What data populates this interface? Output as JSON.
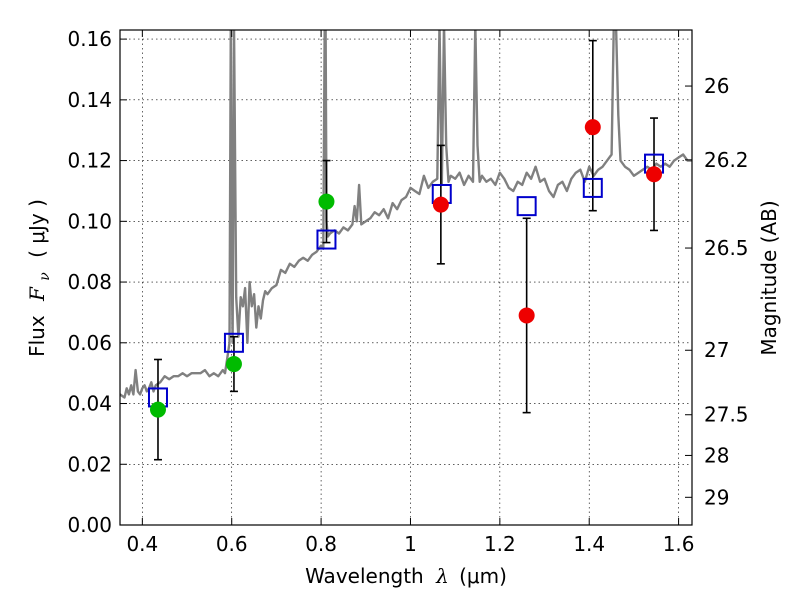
{
  "chart_data": {
    "type": "scatter",
    "xlabel_parts": {
      "text": "Wavelength",
      "sym": "λ",
      "unit": "(μm)"
    },
    "ylabel_parts": {
      "text": "Flux",
      "sym": "F",
      "sub": "ν",
      "unit": "( μJy )"
    },
    "y2label": "Magnitude (AB)",
    "xlim": [
      0.35,
      1.63
    ],
    "ylim": [
      0.0,
      0.163
    ],
    "grid": true,
    "xticks": [
      {
        "v": 0.4,
        "label": "0.4"
      },
      {
        "v": 0.6,
        "label": "0.6"
      },
      {
        "v": 0.8,
        "label": "0.8"
      },
      {
        "v": 1.0,
        "label": "1"
      },
      {
        "v": 1.2,
        "label": "1.2"
      },
      {
        "v": 1.4,
        "label": "1.4"
      },
      {
        "v": 1.6,
        "label": "1.6"
      }
    ],
    "yticks": [
      {
        "v": 0.0,
        "label": "0.00"
      },
      {
        "v": 0.02,
        "label": "0.02"
      },
      {
        "v": 0.04,
        "label": "0.04"
      },
      {
        "v": 0.06,
        "label": "0.06"
      },
      {
        "v": 0.08,
        "label": "0.08"
      },
      {
        "v": 0.1,
        "label": "0.10"
      },
      {
        "v": 0.12,
        "label": "0.12"
      },
      {
        "v": 0.14,
        "label": "0.14"
      },
      {
        "v": 0.16,
        "label": "0.16"
      }
    ],
    "magnitude_ticks": [
      {
        "mag": 26.0,
        "label": "26"
      },
      {
        "mag": 26.2,
        "label": "26.2"
      },
      {
        "mag": 26.5,
        "label": "26.5"
      },
      {
        "mag": 27.0,
        "label": "27"
      },
      {
        "mag": 27.5,
        "label": "27.5"
      },
      {
        "mag": 28.0,
        "label": "28"
      },
      {
        "mag": 29.0,
        "label": "29"
      }
    ],
    "series": [
      {
        "kind": "spectrum",
        "color": "#808080",
        "x": [
          0.35,
          0.36,
          0.365,
          0.37,
          0.375,
          0.38,
          0.385,
          0.39,
          0.395,
          0.4,
          0.405,
          0.41,
          0.415,
          0.42,
          0.425,
          0.43,
          0.44,
          0.45,
          0.46,
          0.47,
          0.48,
          0.49,
          0.5,
          0.51,
          0.52,
          0.53,
          0.54,
          0.55,
          0.56,
          0.57,
          0.58,
          0.585,
          0.59,
          0.595,
          0.598,
          0.6,
          0.602,
          0.605,
          0.61,
          0.615,
          0.62,
          0.625,
          0.63,
          0.635,
          0.64,
          0.645,
          0.65,
          0.655,
          0.66,
          0.665,
          0.67,
          0.675,
          0.68,
          0.69,
          0.7,
          0.71,
          0.72,
          0.73,
          0.74,
          0.75,
          0.76,
          0.77,
          0.78,
          0.79,
          0.8,
          0.805,
          0.808,
          0.81,
          0.812,
          0.815,
          0.82,
          0.83,
          0.84,
          0.85,
          0.86,
          0.87,
          0.875,
          0.88,
          0.885,
          0.89,
          0.9,
          0.91,
          0.92,
          0.93,
          0.94,
          0.95,
          0.96,
          0.97,
          0.98,
          0.99,
          1.0,
          1.01,
          1.02,
          1.03,
          1.04,
          1.05,
          1.06,
          1.065,
          1.07,
          1.075,
          1.08,
          1.085,
          1.09,
          1.1,
          1.11,
          1.12,
          1.13,
          1.14,
          1.145,
          1.15,
          1.155,
          1.16,
          1.17,
          1.18,
          1.19,
          1.2,
          1.21,
          1.22,
          1.23,
          1.24,
          1.25,
          1.26,
          1.27,
          1.28,
          1.29,
          1.3,
          1.31,
          1.32,
          1.33,
          1.34,
          1.35,
          1.36,
          1.37,
          1.38,
          1.39,
          1.4,
          1.41,
          1.42,
          1.43,
          1.44,
          1.45,
          1.455,
          1.46,
          1.465,
          1.47,
          1.48,
          1.49,
          1.5,
          1.51,
          1.52,
          1.53,
          1.54,
          1.55,
          1.56,
          1.57,
          1.58,
          1.59,
          1.6,
          1.61,
          1.62,
          1.63
        ],
        "y": [
          0.043,
          0.042,
          0.045,
          0.043,
          0.046,
          0.043,
          0.051,
          0.044,
          0.043,
          0.045,
          0.046,
          0.044,
          0.045,
          0.047,
          0.044,
          0.046,
          0.047,
          0.049,
          0.048,
          0.049,
          0.049,
          0.05,
          0.049,
          0.05,
          0.05,
          0.05,
          0.051,
          0.049,
          0.05,
          0.049,
          0.051,
          0.05,
          0.055,
          0.06,
          0.165,
          0.09,
          0.06,
          0.165,
          0.075,
          0.062,
          0.075,
          0.072,
          0.078,
          0.06,
          0.08,
          0.072,
          0.076,
          0.065,
          0.072,
          0.068,
          0.074,
          0.077,
          0.076,
          0.078,
          0.079,
          0.084,
          0.083,
          0.086,
          0.085,
          0.087,
          0.088,
          0.087,
          0.089,
          0.09,
          0.092,
          0.091,
          0.165,
          0.165,
          0.1,
          0.095,
          0.096,
          0.097,
          0.096,
          0.098,
          0.097,
          0.099,
          0.105,
          0.1,
          0.112,
          0.099,
          0.1,
          0.101,
          0.103,
          0.102,
          0.104,
          0.101,
          0.106,
          0.104,
          0.107,
          0.108,
          0.111,
          0.11,
          0.109,
          0.115,
          0.111,
          0.113,
          0.114,
          0.165,
          0.112,
          0.165,
          0.125,
          0.113,
          0.115,
          0.114,
          0.116,
          0.112,
          0.115,
          0.113,
          0.165,
          0.125,
          0.113,
          0.115,
          0.113,
          0.114,
          0.112,
          0.116,
          0.114,
          0.111,
          0.11,
          0.113,
          0.112,
          0.116,
          0.114,
          0.118,
          0.113,
          0.114,
          0.11,
          0.108,
          0.112,
          0.113,
          0.11,
          0.114,
          0.116,
          0.117,
          0.113,
          0.118,
          0.115,
          0.117,
          0.118,
          0.12,
          0.122,
          0.165,
          0.165,
          0.135,
          0.12,
          0.118,
          0.117,
          0.115,
          0.116,
          0.117,
          0.118,
          0.117,
          0.119,
          0.118,
          0.119,
          0.118,
          0.12,
          0.121,
          0.122,
          0.12,
          0.12
        ]
      },
      {
        "kind": "model_points",
        "marker": "open-square",
        "color": "#0000cc",
        "x": [
          0.435,
          0.605,
          0.812,
          1.07,
          1.26,
          1.408,
          1.545
        ],
        "y": [
          0.042,
          0.06,
          0.094,
          0.109,
          0.105,
          0.111,
          0.119
        ]
      },
      {
        "kind": "observed_points",
        "marker": "filled-circle",
        "color": "#00bb00",
        "x": [
          0.435,
          0.605,
          0.812
        ],
        "y": [
          0.038,
          0.053,
          0.1065
        ],
        "yerr_lo": [
          0.0165,
          0.009,
          0.0135
        ],
        "yerr_hi": [
          0.0165,
          0.009,
          0.0135
        ]
      },
      {
        "kind": "observed_points",
        "marker": "filled-circle",
        "color": "#ee0000",
        "x": [
          1.068,
          1.26,
          1.408,
          1.545
        ],
        "y": [
          0.1055,
          0.069,
          0.131,
          0.1155
        ],
        "yerr_lo": [
          0.0195,
          0.032,
          0.0275,
          0.0185
        ],
        "yerr_hi": [
          0.0195,
          0.032,
          0.0285,
          0.0185
        ]
      }
    ]
  }
}
